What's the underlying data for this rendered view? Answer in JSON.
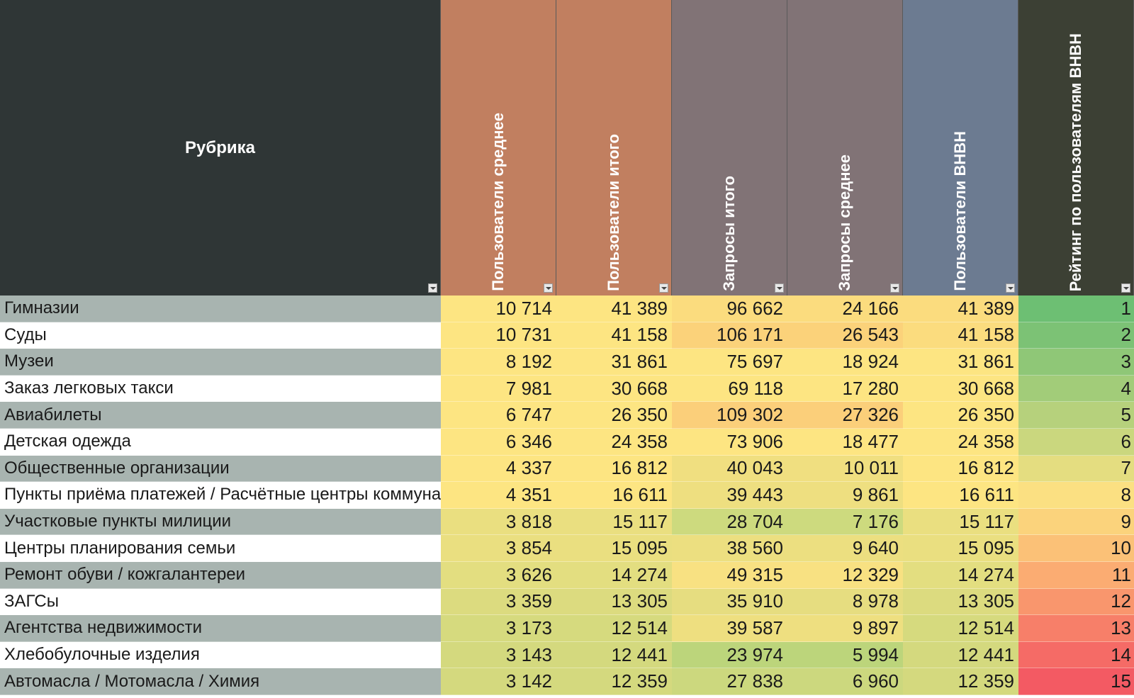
{
  "headers": {
    "rubric": "Рубрика",
    "users_avg": "Пользователи среднее",
    "users_total": "Пользователи итого",
    "queries_total": "Запросы итого",
    "queries_avg": "Запросы среднее",
    "users_bnbh": "Пользователи ВНВН",
    "rating": "Рейтинг по пользователям ВНВН"
  },
  "header_colors": {
    "rubric": "#2f3636",
    "users_avg": "#c17f60",
    "users_total": "#c17f60",
    "queries_total": "#817376",
    "queries_avg": "#817376",
    "users_bnbh": "#6c7b91",
    "rating": "#3c4034"
  },
  "rows": [
    {
      "name": "Гимназии",
      "users_avg": "10 714",
      "users_total": "41 389",
      "queries_total": "96 662",
      "queries_avg": "24 166",
      "users_bnbh": "41 389",
      "rating": "1",
      "colors": [
        "#fde582",
        "#fde582",
        "#fbdc7e",
        "#fbdc7e",
        "#fbdc7e",
        "#6dbf73"
      ]
    },
    {
      "name": "Суды",
      "users_avg": "10 731",
      "users_total": "41 158",
      "queries_total": "106 171",
      "queries_avg": "26 543",
      "users_bnbh": "41 158",
      "rating": "2",
      "colors": [
        "#fde582",
        "#fde582",
        "#fbd27a",
        "#fbd27a",
        "#fbdc7e",
        "#7cc275"
      ]
    },
    {
      "name": "Музеи",
      "users_avg": "8 192",
      "users_total": "31 861",
      "queries_total": "75 697",
      "queries_avg": "18 924",
      "users_bnbh": "31 861",
      "rating": "3",
      "colors": [
        "#fde582",
        "#fde582",
        "#fde582",
        "#fde582",
        "#fde582",
        "#8fc777"
      ]
    },
    {
      "name": "Заказ легковых такси",
      "users_avg": "7 981",
      "users_total": "30 668",
      "queries_total": "69 118",
      "queries_avg": "17 280",
      "users_bnbh": "30 668",
      "rating": "4",
      "colors": [
        "#fde582",
        "#fde582",
        "#fde582",
        "#fde582",
        "#fde582",
        "#a2cc79"
      ]
    },
    {
      "name": "Авиабилеты",
      "users_avg": "6 747",
      "users_total": "26 350",
      "queries_total": "109 302",
      "queries_avg": "27 326",
      "users_bnbh": "26 350",
      "rating": "5",
      "colors": [
        "#fde582",
        "#fde582",
        "#fbcf7a",
        "#fbcf7a",
        "#fde582",
        "#b6d17c"
      ]
    },
    {
      "name": "Детская одежда",
      "users_avg": "6 346",
      "users_total": "24 358",
      "queries_total": "73 906",
      "queries_avg": "18 477",
      "users_bnbh": "24 358",
      "rating": "6",
      "colors": [
        "#fde582",
        "#fde582",
        "#fde582",
        "#fde582",
        "#fde582",
        "#cad77e"
      ]
    },
    {
      "name": "Общественные организации",
      "users_avg": "4 337",
      "users_total": "16 812",
      "queries_total": "40 043",
      "queries_avg": "10 011",
      "users_bnbh": "16 812",
      "rating": "7",
      "colors": [
        "#fde582",
        "#fde582",
        "#f0df80",
        "#f0df80",
        "#fde582",
        "#e4dd80"
      ]
    },
    {
      "name": "Пункты приёма платежей / Расчётные центры коммунальных",
      "users_avg": "4 351",
      "users_total": "16 611",
      "queries_total": "39 443",
      "queries_avg": "9 861",
      "users_bnbh": "16 611",
      "rating": "8",
      "colors": [
        "#fde582",
        "#fde582",
        "#eedf80",
        "#eedf80",
        "#fde582",
        "#fbe082"
      ]
    },
    {
      "name": "Участковые пункты милиции",
      "users_avg": "3 818",
      "users_total": "15 117",
      "queries_total": "28 704",
      "queries_avg": "7 176",
      "users_bnbh": "15 117",
      "rating": "9",
      "colors": [
        "#eadf80",
        "#eadf80",
        "#cdda7e",
        "#cdda7e",
        "#eadf80",
        "#fbd37c"
      ]
    },
    {
      "name": "Центры планирования семьи",
      "users_avg": "3 854",
      "users_total": "15 095",
      "queries_total": "38 560",
      "queries_avg": "9 640",
      "users_bnbh": "15 095",
      "rating": "10",
      "colors": [
        "#eadf80",
        "#eadf80",
        "#ecdf80",
        "#ecdf80",
        "#eadf80",
        "#fbc177"
      ]
    },
    {
      "name": "Ремонт обуви / кожгалантереи",
      "users_avg": "3 626",
      "users_total": "14 274",
      "queries_total": "49 315",
      "queries_avg": "12 329",
      "users_bnbh": "14 274",
      "rating": "11",
      "colors": [
        "#e3de80",
        "#e3de80",
        "#f8e182",
        "#f8e182",
        "#e3de80",
        "#fbac72"
      ]
    },
    {
      "name": "ЗАГСы",
      "users_avg": "3 359",
      "users_total": "13 305",
      "queries_total": "35 910",
      "queries_avg": "8 978",
      "users_bnbh": "13 305",
      "rating": "12",
      "colors": [
        "#dcdb7f",
        "#dcdb7f",
        "#e6dd80",
        "#e6dd80",
        "#dcdb7f",
        "#f9966d"
      ]
    },
    {
      "name": "Агентства недвижимости",
      "users_avg": "3 173",
      "users_total": "12 514",
      "queries_total": "39 587",
      "queries_avg": "9 897",
      "users_bnbh": "12 514",
      "rating": "13",
      "colors": [
        "#d6da7e",
        "#d6da7e",
        "#eedf80",
        "#eedf80",
        "#d6da7e",
        "#f77f69"
      ]
    },
    {
      "name": "Хлебобулочные изделия",
      "users_avg": "3 143",
      "users_total": "12 441",
      "queries_total": "23 974",
      "queries_avg": "5 994",
      "users_bnbh": "12 441",
      "rating": "14",
      "colors": [
        "#d4d97e",
        "#d4d97e",
        "#bcd57b",
        "#bcd57b",
        "#d4d97e",
        "#f56b66"
      ]
    },
    {
      "name": "Автомасла / Мотомасла / Химия",
      "users_avg": "3 142",
      "users_total": "12 359",
      "queries_total": "27 838",
      "queries_avg": "6 960",
      "users_bnbh": "12 359",
      "rating": "15",
      "colors": [
        "#d4d97e",
        "#d4d97e",
        "#ccd87e",
        "#ccd87e",
        "#d4d97e",
        "#f35a63"
      ]
    }
  ]
}
